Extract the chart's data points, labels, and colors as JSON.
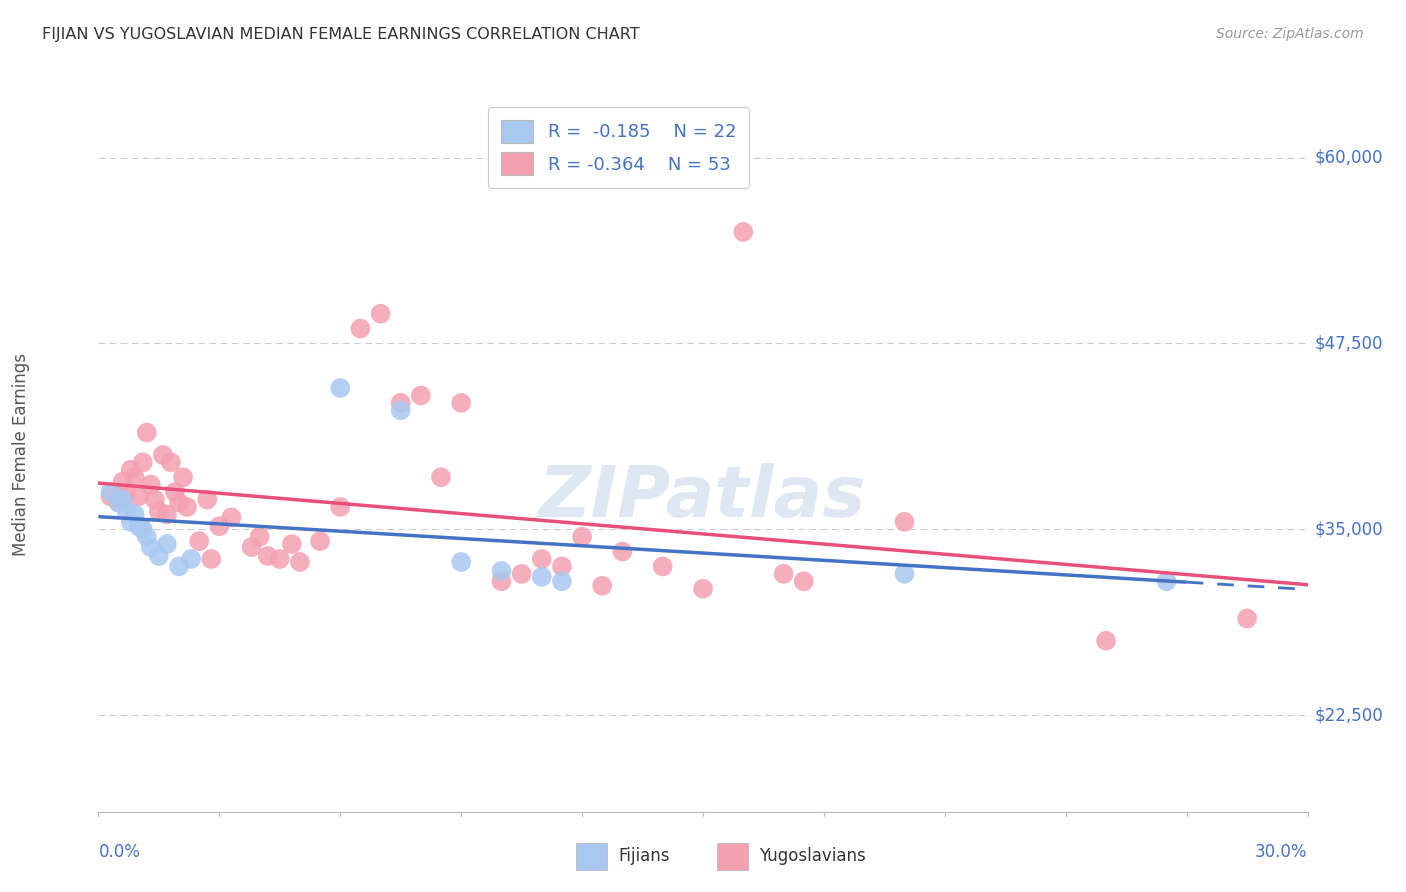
{
  "title": "FIJIAN VS YUGOSLAVIAN MEDIAN FEMALE EARNINGS CORRELATION CHART",
  "source": "Source: ZipAtlas.com",
  "ylabel": "Median Female Earnings",
  "y_ticks": [
    22500,
    35000,
    47500,
    60000
  ],
  "y_tick_labels": [
    "$22,500",
    "$35,000",
    "$47,500",
    "$60,000"
  ],
  "x_min": 0.0,
  "x_max": 0.3,
  "y_min": 16000,
  "y_max": 64000,
  "fijian_color": "#a8c8f0",
  "yugoslavian_color": "#f4a0b0",
  "trend_fijian_color": "#4472c4",
  "trend_yugoslavian_color": "#e8507a",
  "legend_label_fijian": "R =  -0.185    N = 22",
  "legend_label_yugoslavian": "R = -0.364    N = 53",
  "watermark": "ZIPatlas",
  "fijian_points": [
    [
      0.003,
      37500
    ],
    [
      0.005,
      36800
    ],
    [
      0.006,
      37000
    ],
    [
      0.007,
      36200
    ],
    [
      0.008,
      35500
    ],
    [
      0.009,
      36000
    ],
    [
      0.01,
      35200
    ],
    [
      0.011,
      35000
    ],
    [
      0.012,
      34500
    ],
    [
      0.013,
      33800
    ],
    [
      0.015,
      33200
    ],
    [
      0.017,
      34000
    ],
    [
      0.02,
      32500
    ],
    [
      0.023,
      33000
    ],
    [
      0.06,
      44500
    ],
    [
      0.075,
      43000
    ],
    [
      0.09,
      32800
    ],
    [
      0.1,
      32200
    ],
    [
      0.11,
      31800
    ],
    [
      0.115,
      31500
    ],
    [
      0.2,
      32000
    ],
    [
      0.265,
      31500
    ]
  ],
  "yugoslavian_points": [
    [
      0.003,
      37200
    ],
    [
      0.005,
      36800
    ],
    [
      0.006,
      38200
    ],
    [
      0.007,
      37500
    ],
    [
      0.008,
      39000
    ],
    [
      0.009,
      38500
    ],
    [
      0.01,
      37200
    ],
    [
      0.011,
      39500
    ],
    [
      0.012,
      41500
    ],
    [
      0.013,
      38000
    ],
    [
      0.014,
      37000
    ],
    [
      0.015,
      36200
    ],
    [
      0.016,
      40000
    ],
    [
      0.017,
      36000
    ],
    [
      0.018,
      39500
    ],
    [
      0.019,
      37500
    ],
    [
      0.02,
      36800
    ],
    [
      0.021,
      38500
    ],
    [
      0.022,
      36500
    ],
    [
      0.025,
      34200
    ],
    [
      0.027,
      37000
    ],
    [
      0.028,
      33000
    ],
    [
      0.03,
      35200
    ],
    [
      0.033,
      35800
    ],
    [
      0.038,
      33800
    ],
    [
      0.04,
      34500
    ],
    [
      0.042,
      33200
    ],
    [
      0.045,
      33000
    ],
    [
      0.048,
      34000
    ],
    [
      0.05,
      32800
    ],
    [
      0.055,
      34200
    ],
    [
      0.06,
      36500
    ],
    [
      0.065,
      48500
    ],
    [
      0.07,
      49500
    ],
    [
      0.075,
      43500
    ],
    [
      0.08,
      44000
    ],
    [
      0.085,
      38500
    ],
    [
      0.09,
      43500
    ],
    [
      0.1,
      31500
    ],
    [
      0.105,
      32000
    ],
    [
      0.11,
      33000
    ],
    [
      0.115,
      32500
    ],
    [
      0.12,
      34500
    ],
    [
      0.125,
      31200
    ],
    [
      0.13,
      33500
    ],
    [
      0.14,
      32500
    ],
    [
      0.15,
      31000
    ],
    [
      0.16,
      55000
    ],
    [
      0.17,
      32000
    ],
    [
      0.175,
      31500
    ],
    [
      0.2,
      35500
    ],
    [
      0.25,
      27500
    ],
    [
      0.285,
      29000
    ]
  ],
  "background_color": "#ffffff",
  "grid_color": "#cccccc"
}
